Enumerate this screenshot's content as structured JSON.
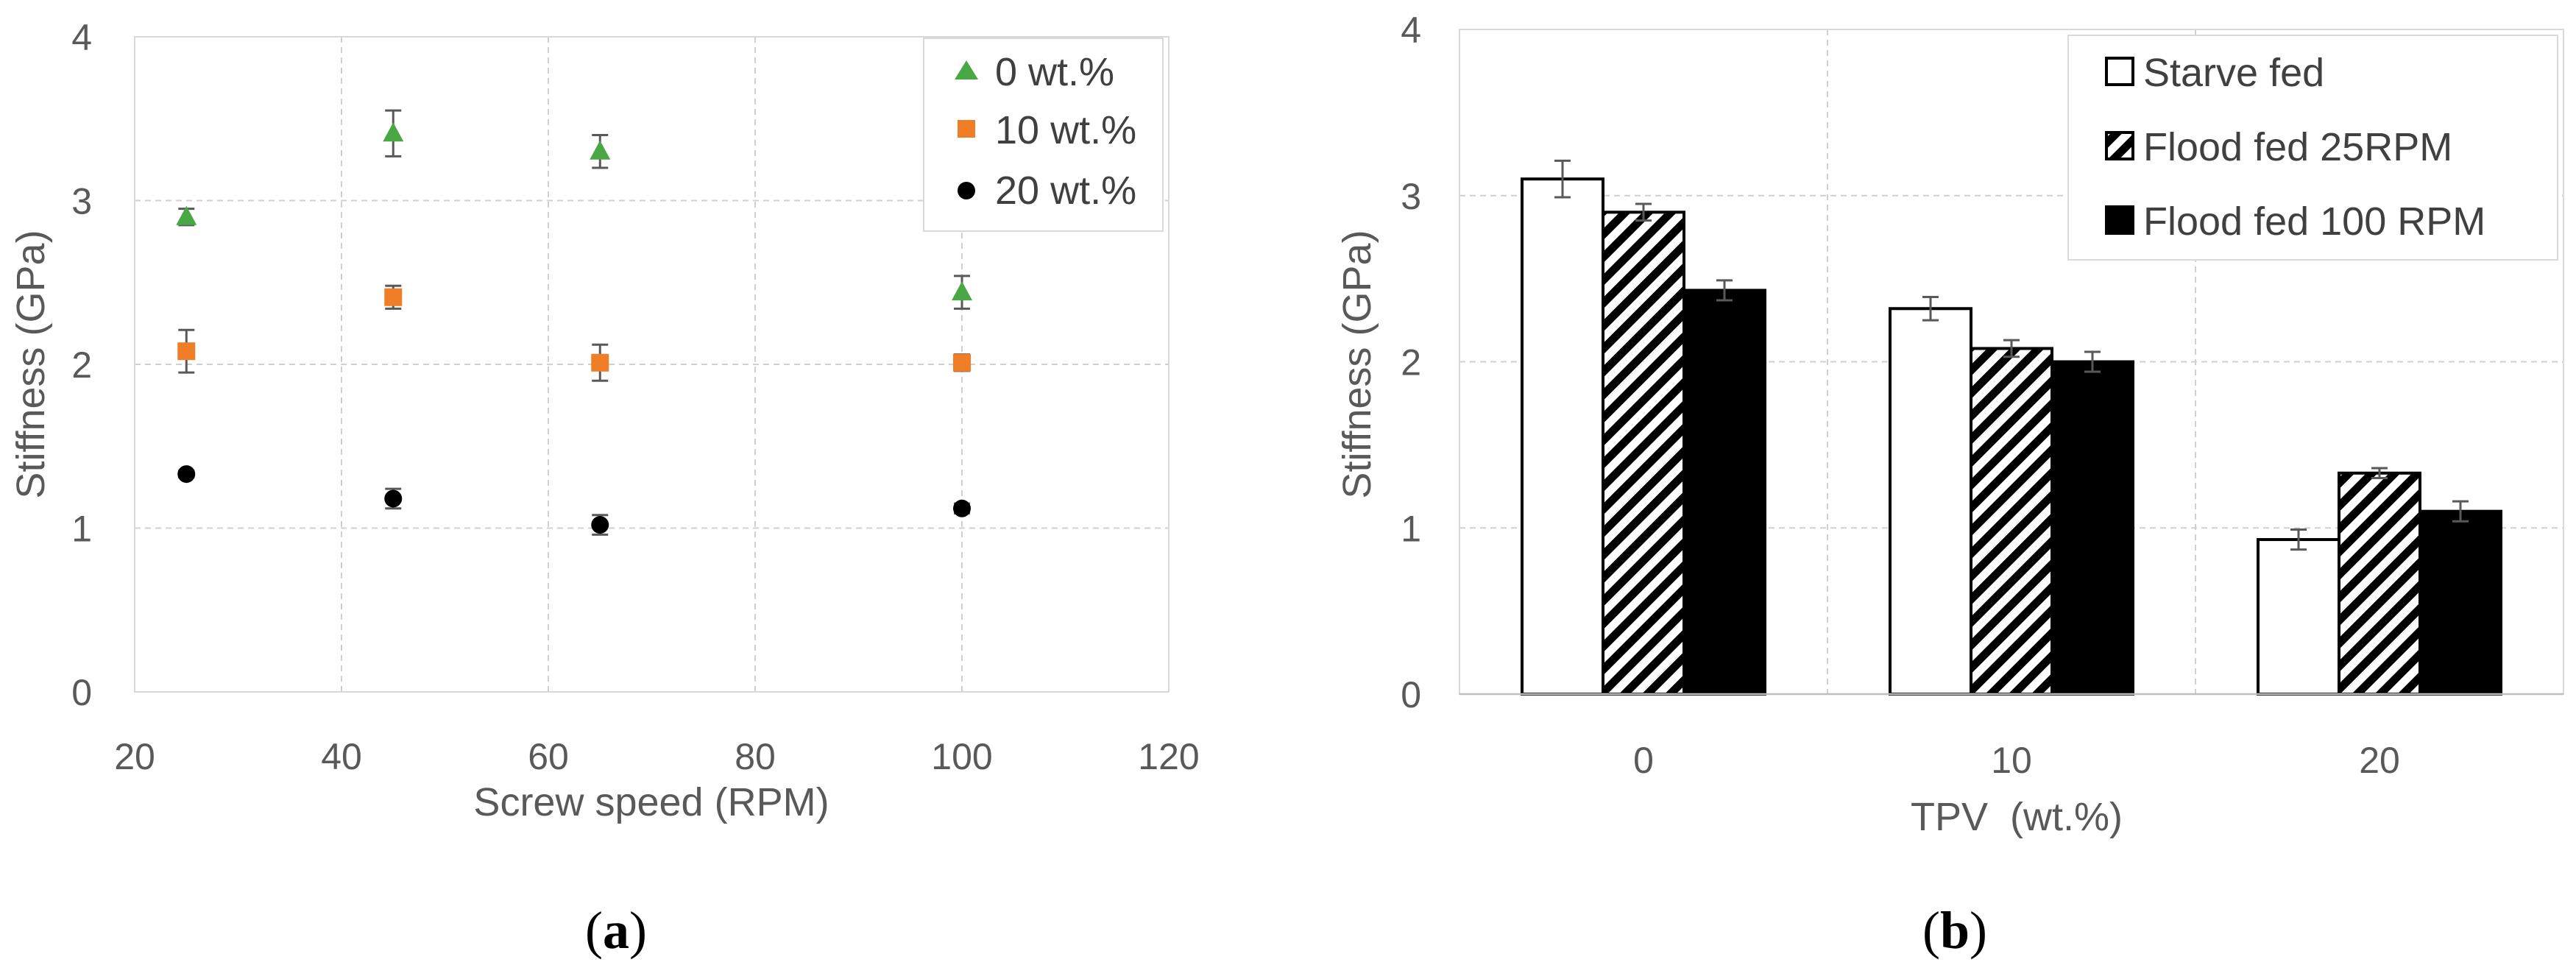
{
  "chart_data": [
    {
      "type": "scatter",
      "panel": "(a)",
      "panel_label_parts": [
        "(",
        "a",
        ")"
      ],
      "xlabel": "Screw speed (RPM)",
      "ylabel": "Stiffness (GPa)",
      "xlim": [
        20,
        120
      ],
      "ylim": [
        0,
        4
      ],
      "xticks": [
        20,
        40,
        60,
        80,
        100,
        120
      ],
      "yticks": [
        0,
        1,
        2,
        3,
        4
      ],
      "grid": true,
      "legend_position": "top-right",
      "series": [
        {
          "name": "0 wt.%",
          "marker": "triangle",
          "color": "#4aa844",
          "x": [
            25,
            45,
            65,
            100
          ],
          "y": [
            2.9,
            3.41,
            3.3,
            2.44
          ],
          "err": [
            0.05,
            0.14,
            0.1,
            0.1
          ]
        },
        {
          "name": "10 wt.%",
          "marker": "square",
          "color": "#f07e26",
          "x": [
            25,
            45,
            65,
            100
          ],
          "y": [
            2.08,
            2.41,
            2.01,
            2.01
          ],
          "err": [
            0.13,
            0.07,
            0.11,
            0.05
          ]
        },
        {
          "name": "20 wt.%",
          "marker": "circle",
          "color": "#000000",
          "x": [
            25,
            45,
            65,
            100
          ],
          "y": [
            1.33,
            1.18,
            1.02,
            1.12
          ],
          "err": [
            0.02,
            0.06,
            0.06,
            0.03
          ]
        }
      ]
    },
    {
      "type": "bar",
      "panel": "(b)",
      "panel_label_parts": [
        "(",
        "b",
        ")"
      ],
      "xlabel": "TPV  (wt.%)",
      "ylabel": "Stiffness (GPa)",
      "ylim": [
        0,
        4
      ],
      "yticks": [
        0,
        1,
        2,
        3,
        4
      ],
      "categories": [
        "0",
        "10",
        "20"
      ],
      "grid": true,
      "legend_position": "top-right",
      "series": [
        {
          "name": "Starve fed",
          "fill": "white",
          "values": [
            3.1,
            2.32,
            0.93
          ],
          "err": [
            0.11,
            0.07,
            0.06
          ]
        },
        {
          "name": "Flood fed 25RPM",
          "fill": "hatched",
          "values": [
            2.9,
            2.08,
            1.33
          ],
          "err": [
            0.05,
            0.05,
            0.03
          ]
        },
        {
          "name": "Flood fed 100 RPM",
          "fill": "black",
          "values": [
            2.43,
            2.0,
            1.1
          ],
          "err": [
            0.06,
            0.06,
            0.06
          ]
        }
      ]
    }
  ]
}
